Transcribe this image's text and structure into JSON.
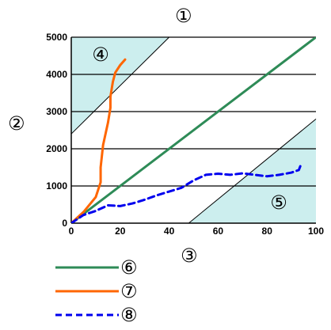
{
  "labels": {
    "top": "①",
    "left": "②",
    "bottom": "③",
    "region_upper": "④",
    "region_lower": "⑤"
  },
  "legend": [
    {
      "label": "⑥",
      "color": "#2e8b57",
      "style": "solid-green"
    },
    {
      "label": "⑦",
      "color": "#ff6600",
      "style": "solid-orange"
    },
    {
      "label": "⑧",
      "color": "#0000ee",
      "style": "dashed-blue"
    }
  ],
  "colors": {
    "region_fill": "#cceeee",
    "green": "#2e8b57",
    "orange": "#ff6600",
    "blue": "#0000ee"
  },
  "chart_data": {
    "type": "line",
    "xlim": [
      0,
      100
    ],
    "ylim": [
      0,
      5000
    ],
    "xticks": [
      0,
      20,
      40,
      60,
      80,
      100
    ],
    "yticks": [
      0,
      1000,
      2000,
      3000,
      4000,
      5000
    ],
    "grid_y": true,
    "regions": [
      {
        "label": "④",
        "boundary": [
          [
            0,
            2400
          ],
          [
            40,
            5000
          ]
        ],
        "side": "upper-left"
      },
      {
        "label": "⑤",
        "boundary": [
          [
            48,
            0
          ],
          [
            100,
            2800
          ]
        ],
        "side": "lower-right"
      }
    ],
    "series": [
      {
        "name": "⑥",
        "x": [
          0,
          100
        ],
        "y": [
          0,
          5000
        ]
      },
      {
        "name": "⑦",
        "x": [
          0,
          5,
          10,
          12,
          12,
          13,
          14,
          15,
          16,
          16,
          17,
          18,
          20,
          22
        ],
        "y": [
          0,
          300,
          700,
          1100,
          1500,
          2100,
          2400,
          2700,
          3100,
          3400,
          3800,
          4050,
          4250,
          4400
        ]
      },
      {
        "name": "⑧",
        "x": [
          0,
          5,
          10,
          15,
          20,
          25,
          30,
          35,
          40,
          45,
          50,
          55,
          60,
          65,
          70,
          75,
          80,
          85,
          90,
          93,
          94
        ],
        "y": [
          0,
          220,
          330,
          480,
          460,
          530,
          630,
          750,
          850,
          950,
          1150,
          1300,
          1330,
          1300,
          1340,
          1300,
          1260,
          1300,
          1360,
          1430,
          1600
        ]
      }
    ]
  }
}
